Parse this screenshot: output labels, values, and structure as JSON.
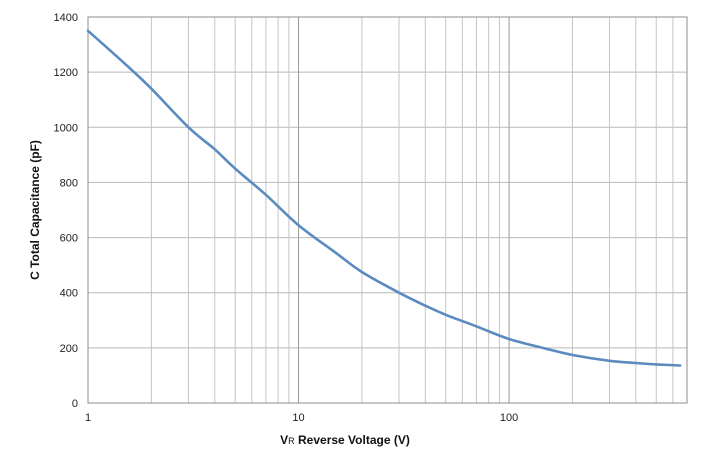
{
  "chart_data": {
    "type": "line",
    "xscale": "log",
    "xlabel_parts": {
      "symbol": "V",
      "subscript": "R",
      "text": " Reverse Voltage (V)"
    },
    "ylabel": "C Total Capacitance (pF)",
    "xlim": [
      1,
      700
    ],
    "ylim": [
      0,
      1400
    ],
    "grid": true,
    "xticks": [
      1,
      10,
      100
    ],
    "xtick_labels": [
      "1",
      "10",
      "100"
    ],
    "yticks": [
      0,
      200,
      400,
      600,
      800,
      1000,
      1200,
      1400
    ],
    "ytick_labels": [
      "0",
      "200",
      "400",
      "600",
      "800",
      "1000",
      "1200",
      "1400"
    ],
    "series": [
      {
        "color": "#5b8bbf",
        "x": [
          1,
          1.5,
          2,
          3,
          4,
          5,
          7,
          10,
          15,
          20,
          30,
          40,
          50,
          70,
          100,
          150,
          200,
          300,
          400,
          500,
          650
        ],
        "y": [
          1350,
          1230,
          1140,
          1000,
          920,
          850,
          755,
          645,
          545,
          475,
          400,
          353,
          320,
          278,
          232,
          197,
          174,
          153,
          145,
          140,
          136
        ]
      }
    ]
  }
}
